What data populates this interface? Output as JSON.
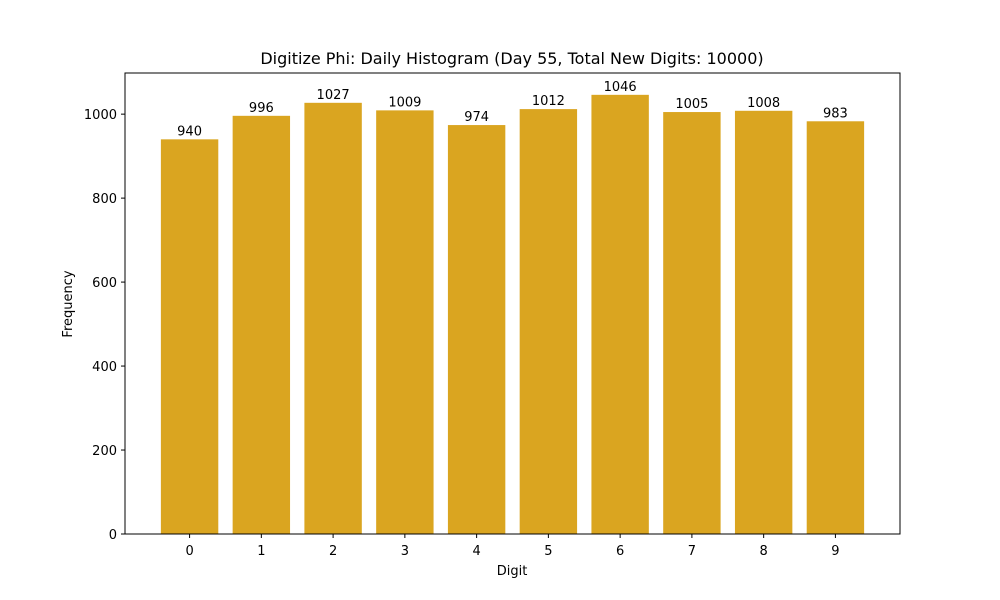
{
  "chart_data": {
    "type": "bar",
    "title": "Digitize Phi: Daily Histogram (Day 55, Total New Digits: 10000)",
    "xlabel": "Digit",
    "ylabel": "Frequency",
    "categories": [
      "0",
      "1",
      "2",
      "3",
      "4",
      "5",
      "6",
      "7",
      "8",
      "9"
    ],
    "values": [
      940,
      996,
      1027,
      1009,
      974,
      1012,
      1046,
      1005,
      1008,
      983
    ],
    "data_labels": [
      "940",
      "996",
      "1027",
      "1009",
      "974",
      "1012",
      "1046",
      "1005",
      "1008",
      "983"
    ],
    "yticks": [
      0,
      200,
      400,
      600,
      800,
      1000
    ],
    "ylim": [
      0,
      1098
    ],
    "xlim": [
      -0.9,
      9.9
    ],
    "grid": false,
    "legend": null,
    "bar_color": "#DAA520"
  }
}
